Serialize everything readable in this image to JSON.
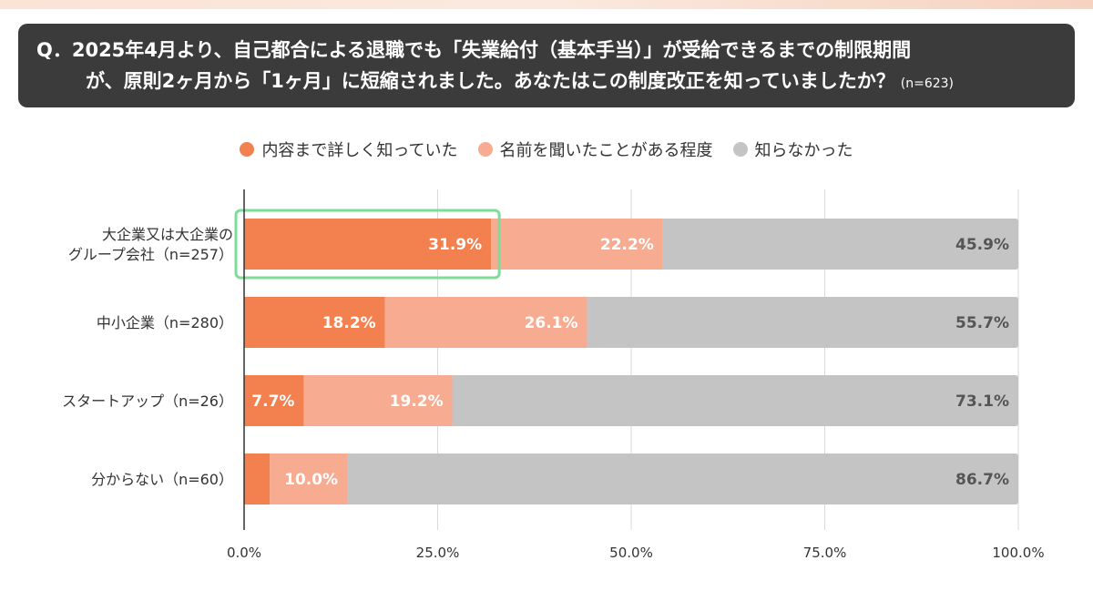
{
  "question": {
    "line1": "Q．2025年4月より、自己都合による退職でも「失業給付（基本手当）」が受給できるまでの制限期間",
    "line2": "が、原則2ヶ月から「1ヶ月」に短縮されました。あなたはこの制度改正を知っていましたか？",
    "n": "(n=623)"
  },
  "chart_data": {
    "type": "bar",
    "orientation": "horizontal",
    "stacked": true,
    "categories": [
      [
        "大企業又は大企業の",
        "グループ会社（n=257）"
      ],
      [
        "中小企業（n=280）"
      ],
      [
        "スタートアップ（n=26）"
      ],
      [
        "分からない（n=60）"
      ]
    ],
    "series": [
      {
        "name": "内容まで詳しく知っていた",
        "values": [
          31.9,
          18.2,
          7.7,
          3.3
        ],
        "labels": [
          "31.9%",
          "18.2%",
          "7.7%",
          "3.3%"
        ],
        "color": "#f3804f"
      },
      {
        "name": "名前を聞いたことがある程度",
        "values": [
          22.2,
          26.1,
          19.2,
          10.0
        ],
        "labels": [
          "22.2%",
          "26.1%",
          "19.2%",
          "10.0%"
        ],
        "color": "#f7ab90"
      },
      {
        "name": "知らなかった",
        "values": [
          45.9,
          55.7,
          73.1,
          86.7
        ],
        "labels": [
          "45.9%",
          "55.7%",
          "73.1%",
          "86.7%"
        ],
        "color": "#c4c4c4"
      }
    ],
    "xlim": [
      0,
      100
    ],
    "xticks": [
      "0.0%",
      "25.0%",
      "50.0%",
      "75.0%",
      "100.0%"
    ],
    "grid": true,
    "legend_position": "top",
    "highlight": {
      "category_index": 0,
      "series_index": 0,
      "color": "#7ddc97"
    }
  }
}
